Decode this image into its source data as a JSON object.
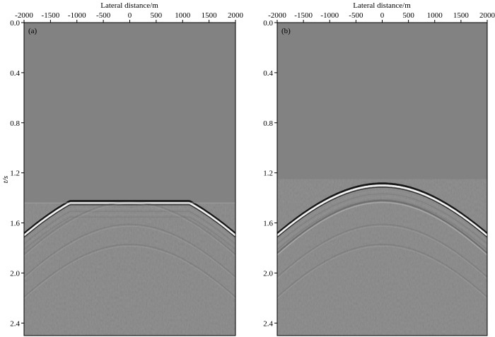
{
  "figure": {
    "panels": [
      {
        "label": "(a)",
        "xlabel": "Lateral distance/m",
        "ylabel": "t/s",
        "x_ticks": [
          "-2000",
          "-1500",
          "-1000",
          "-500",
          "0",
          "500",
          "1000",
          "1500",
          "2000"
        ],
        "y_ticks": [
          "0.0",
          "0.4",
          "0.8",
          "1.2",
          "1.6",
          "2.0",
          "2.4"
        ],
        "flat_top": true
      },
      {
        "label": "(b)",
        "xlabel": "Lateral distance/m",
        "ylabel": "",
        "x_ticks": [
          "-2000",
          "-1500",
          "-1000",
          "-500",
          "0",
          "500",
          "1000",
          "1500",
          "2000"
        ],
        "y_ticks": [
          "0.0",
          "0.4",
          "0.8",
          "1.2",
          "1.6",
          "2.0",
          "2.4"
        ],
        "flat_top": false
      }
    ]
  },
  "chart_data": [
    {
      "type": "heatmap",
      "xlim": [
        -2000,
        2000
      ],
      "ylim": [
        0.0,
        2.5
      ],
      "y_inverted": true,
      "grid": false,
      "events": [
        {
          "apex_x": 0,
          "apex_t": 1.3,
          "muted_above_t": 1.44,
          "edge_t_left": 1.7,
          "edge_t_right": 1.73,
          "polarity": "strong"
        },
        {
          "apex_x": 0,
          "apex_t": 1.44,
          "polarity": "weak"
        },
        {
          "apex_x": 0,
          "apex_t": 1.62,
          "polarity": "weak"
        },
        {
          "apex_x": 0,
          "apex_t": 1.78,
          "polarity": "weak"
        }
      ]
    },
    {
      "type": "heatmap",
      "xlim": [
        -2000,
        2000
      ],
      "ylim": [
        0.0,
        2.5
      ],
      "y_inverted": true,
      "grid": false,
      "events": [
        {
          "apex_x": 0,
          "apex_t": 1.3,
          "edge_t_left": 1.7,
          "edge_t_right": 1.73,
          "polarity": "strong"
        },
        {
          "apex_x": 0,
          "apex_t": 1.43,
          "polarity": "medium"
        },
        {
          "apex_x": 0,
          "apex_t": 1.62,
          "polarity": "weak"
        },
        {
          "apex_x": 0,
          "apex_t": 1.78,
          "polarity": "weak"
        }
      ]
    }
  ]
}
